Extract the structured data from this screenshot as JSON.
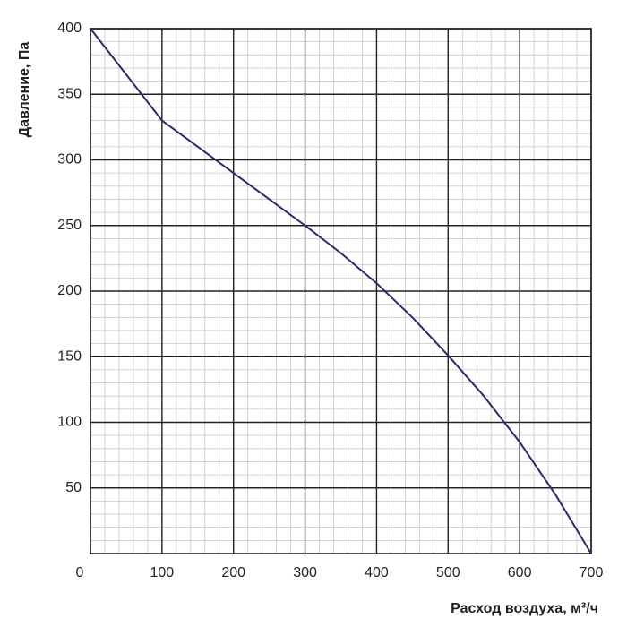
{
  "chart_data": {
    "type": "line",
    "xlabel": "Расход воздуха, м³/ч",
    "ylabel": "Давление, Па",
    "x": [
      0,
      50,
      100,
      150,
      200,
      250,
      300,
      350,
      400,
      450,
      500,
      550,
      600,
      650,
      700
    ],
    "values": [
      400,
      365,
      330,
      310,
      290,
      270,
      250,
      229,
      206,
      180,
      151,
      120,
      85,
      45,
      0
    ],
    "color": "#2b2a6e",
    "xlim": [
      0,
      700
    ],
    "xticks": [
      0,
      100,
      200,
      300,
      400,
      500,
      600,
      700
    ],
    "ylim": [
      0,
      400
    ],
    "yticks": [
      50,
      100,
      150,
      200,
      250,
      300,
      350,
      400
    ],
    "grid": true
  }
}
